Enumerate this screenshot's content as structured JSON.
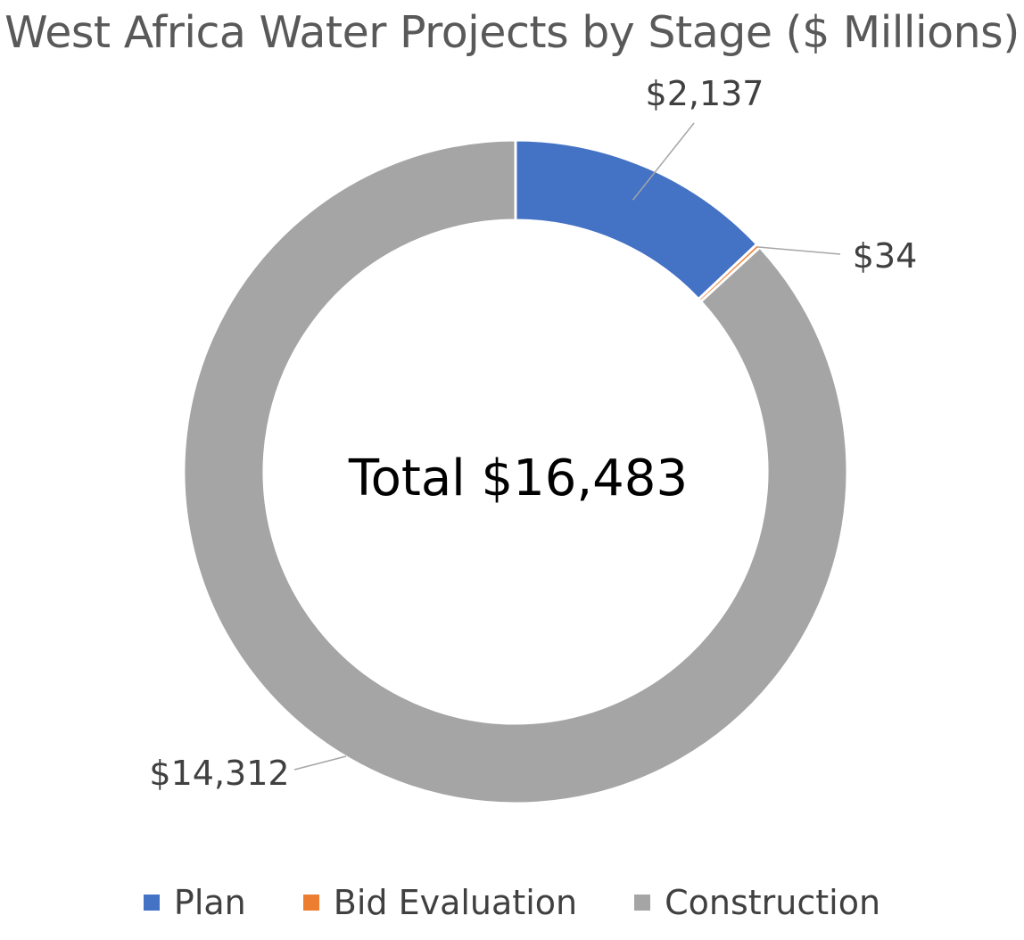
{
  "chart_data": {
    "type": "pie",
    "variant": "donut",
    "title": "West Africa Water Projects by Stage ($ Millions)",
    "center_label": "Total $16,483",
    "slices": [
      {
        "name": "Plan",
        "value": 2137,
        "label": "$2,137",
        "color": "#4472C4"
      },
      {
        "name": "Bid Evaluation",
        "value": 34,
        "label": "$34",
        "color": "#ED7D31"
      },
      {
        "name": "Construction",
        "value": 14312,
        "label": "$14,312",
        "color": "#A5A5A5"
      }
    ],
    "legend_position": "bottom"
  }
}
